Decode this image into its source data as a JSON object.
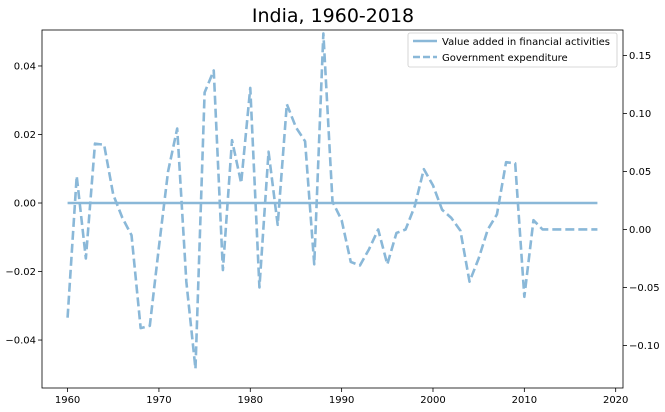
{
  "chart_data": {
    "type": "line",
    "title": "India, 1960-2018",
    "xlabel": "",
    "ylabel_left": "",
    "ylabel_right": "",
    "xlim": [
      1957.2,
      2020.8
    ],
    "ylim_left": [
      -0.054,
      0.0505
    ],
    "ylim_right": [
      -0.1366,
      0.1719
    ],
    "x_ticks": [
      1960,
      1970,
      1980,
      1990,
      2000,
      2010,
      2020
    ],
    "y_ticks_left": [
      -0.04,
      -0.02,
      0.0,
      0.02,
      0.04
    ],
    "y_ticks_left_labels": [
      "−0.04",
      "−0.02",
      "0.00",
      "0.02",
      "0.04"
    ],
    "y_ticks_right": [
      -0.1,
      -0.05,
      0.0,
      0.05,
      0.1,
      0.15
    ],
    "y_ticks_right_labels": [
      "−0.10",
      "−0.05",
      "0.00",
      "0.05",
      "0.10",
      "0.15"
    ],
    "legend_position": "top-right",
    "line_color": "#8ab8d8",
    "series": [
      {
        "name": "Value added in financial activities",
        "axis": "left",
        "style": "solid",
        "x": [
          1960,
          2018
        ],
        "y": [
          0.0,
          0.0
        ]
      },
      {
        "name": "Government expenditure",
        "axis": "right",
        "style": "dashed",
        "x": [
          1960,
          1961,
          1962,
          1963,
          1964,
          1965,
          1966,
          1967,
          1968,
          1969,
          1970,
          1971,
          1972,
          1973,
          1974,
          1975,
          1976,
          1977,
          1978,
          1979,
          1980,
          1981,
          1982,
          1983,
          1984,
          1985,
          1986,
          1987,
          1988,
          1989,
          1990,
          1991,
          1992,
          1993,
          1994,
          1995,
          1996,
          1997,
          1998,
          1999,
          2000,
          2001,
          2002,
          2003,
          2004,
          2005,
          2006,
          2007,
          2008,
          2009,
          2010,
          2011,
          2012,
          2013,
          2014,
          2015,
          2016,
          2017,
          2018
        ],
        "y": [
          -0.076,
          0.046,
          -0.025,
          0.074,
          0.073,
          0.03,
          0.01,
          -0.005,
          -0.085,
          -0.083,
          -0.015,
          0.05,
          0.087,
          -0.045,
          -0.12,
          0.118,
          0.137,
          -0.035,
          0.077,
          0.04,
          0.122,
          -0.05,
          0.067,
          0.004,
          0.108,
          0.088,
          0.076,
          -0.03,
          0.169,
          0.024,
          0.008,
          -0.028,
          -0.031,
          -0.017,
          0.0,
          -0.03,
          -0.003,
          0.0,
          0.02,
          0.052,
          0.038,
          0.017,
          0.01,
          -0.001,
          -0.045,
          -0.025,
          0.0,
          0.013,
          0.058,
          0.057,
          -0.058,
          0.008,
          0.0,
          0.0,
          0.0,
          0.0,
          0.0,
          0.0,
          0.0
        ]
      }
    ]
  }
}
